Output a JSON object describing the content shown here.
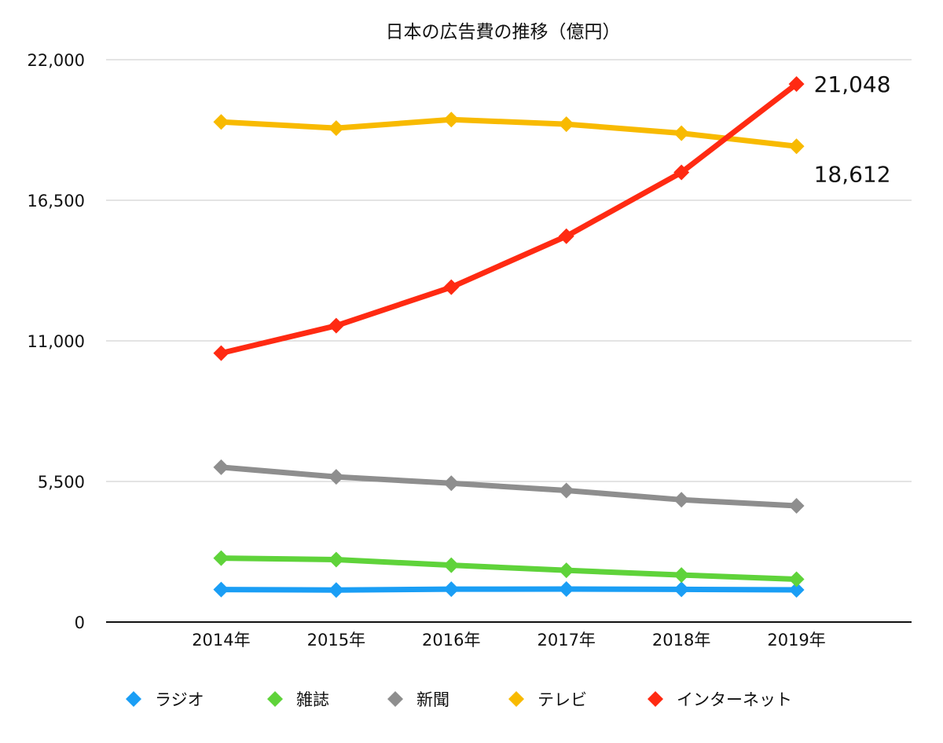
{
  "chart_data": {
    "type": "line",
    "title": "日本の広告費の推移（億円）",
    "xlabel": "",
    "ylabel": "",
    "categories": [
      "2014年",
      "2015年",
      "2016年",
      "2017年",
      "2018年",
      "2019年"
    ],
    "ylim": [
      0,
      22000
    ],
    "yticks": [
      0,
      5500,
      11000,
      16500,
      22000
    ],
    "ytick_labels": [
      "0",
      "5,500",
      "11,000",
      "16,500",
      "22,000"
    ],
    "grid": true,
    "legend_position": "bottom",
    "series": [
      {
        "name": "ラジオ",
        "color": "#1A9EF5",
        "values": [
          1272,
          1254,
          1285,
          1290,
          1278,
          1260
        ]
      },
      {
        "name": "雑誌",
        "color": "#5FD33A",
        "values": [
          2500,
          2443,
          2223,
          2023,
          1841,
          1675
        ]
      },
      {
        "name": "新聞",
        "color": "#8E8E8E",
        "values": [
          6057,
          5679,
          5431,
          5147,
          4784,
          4547
        ]
      },
      {
        "name": "テレビ",
        "color": "#F8BA00",
        "values": [
          19564,
          19323,
          19657,
          19478,
          19123,
          18612
        ]
      },
      {
        "name": "インターネット",
        "color": "#FF2A12",
        "values": [
          10519,
          11594,
          13100,
          15094,
          17589,
          21048
        ]
      }
    ],
    "annotations": [
      {
        "series": "インターネット",
        "category": "2019年",
        "text": "21,048"
      },
      {
        "series": "テレビ",
        "category": "2019年",
        "text": "18,612"
      }
    ]
  }
}
